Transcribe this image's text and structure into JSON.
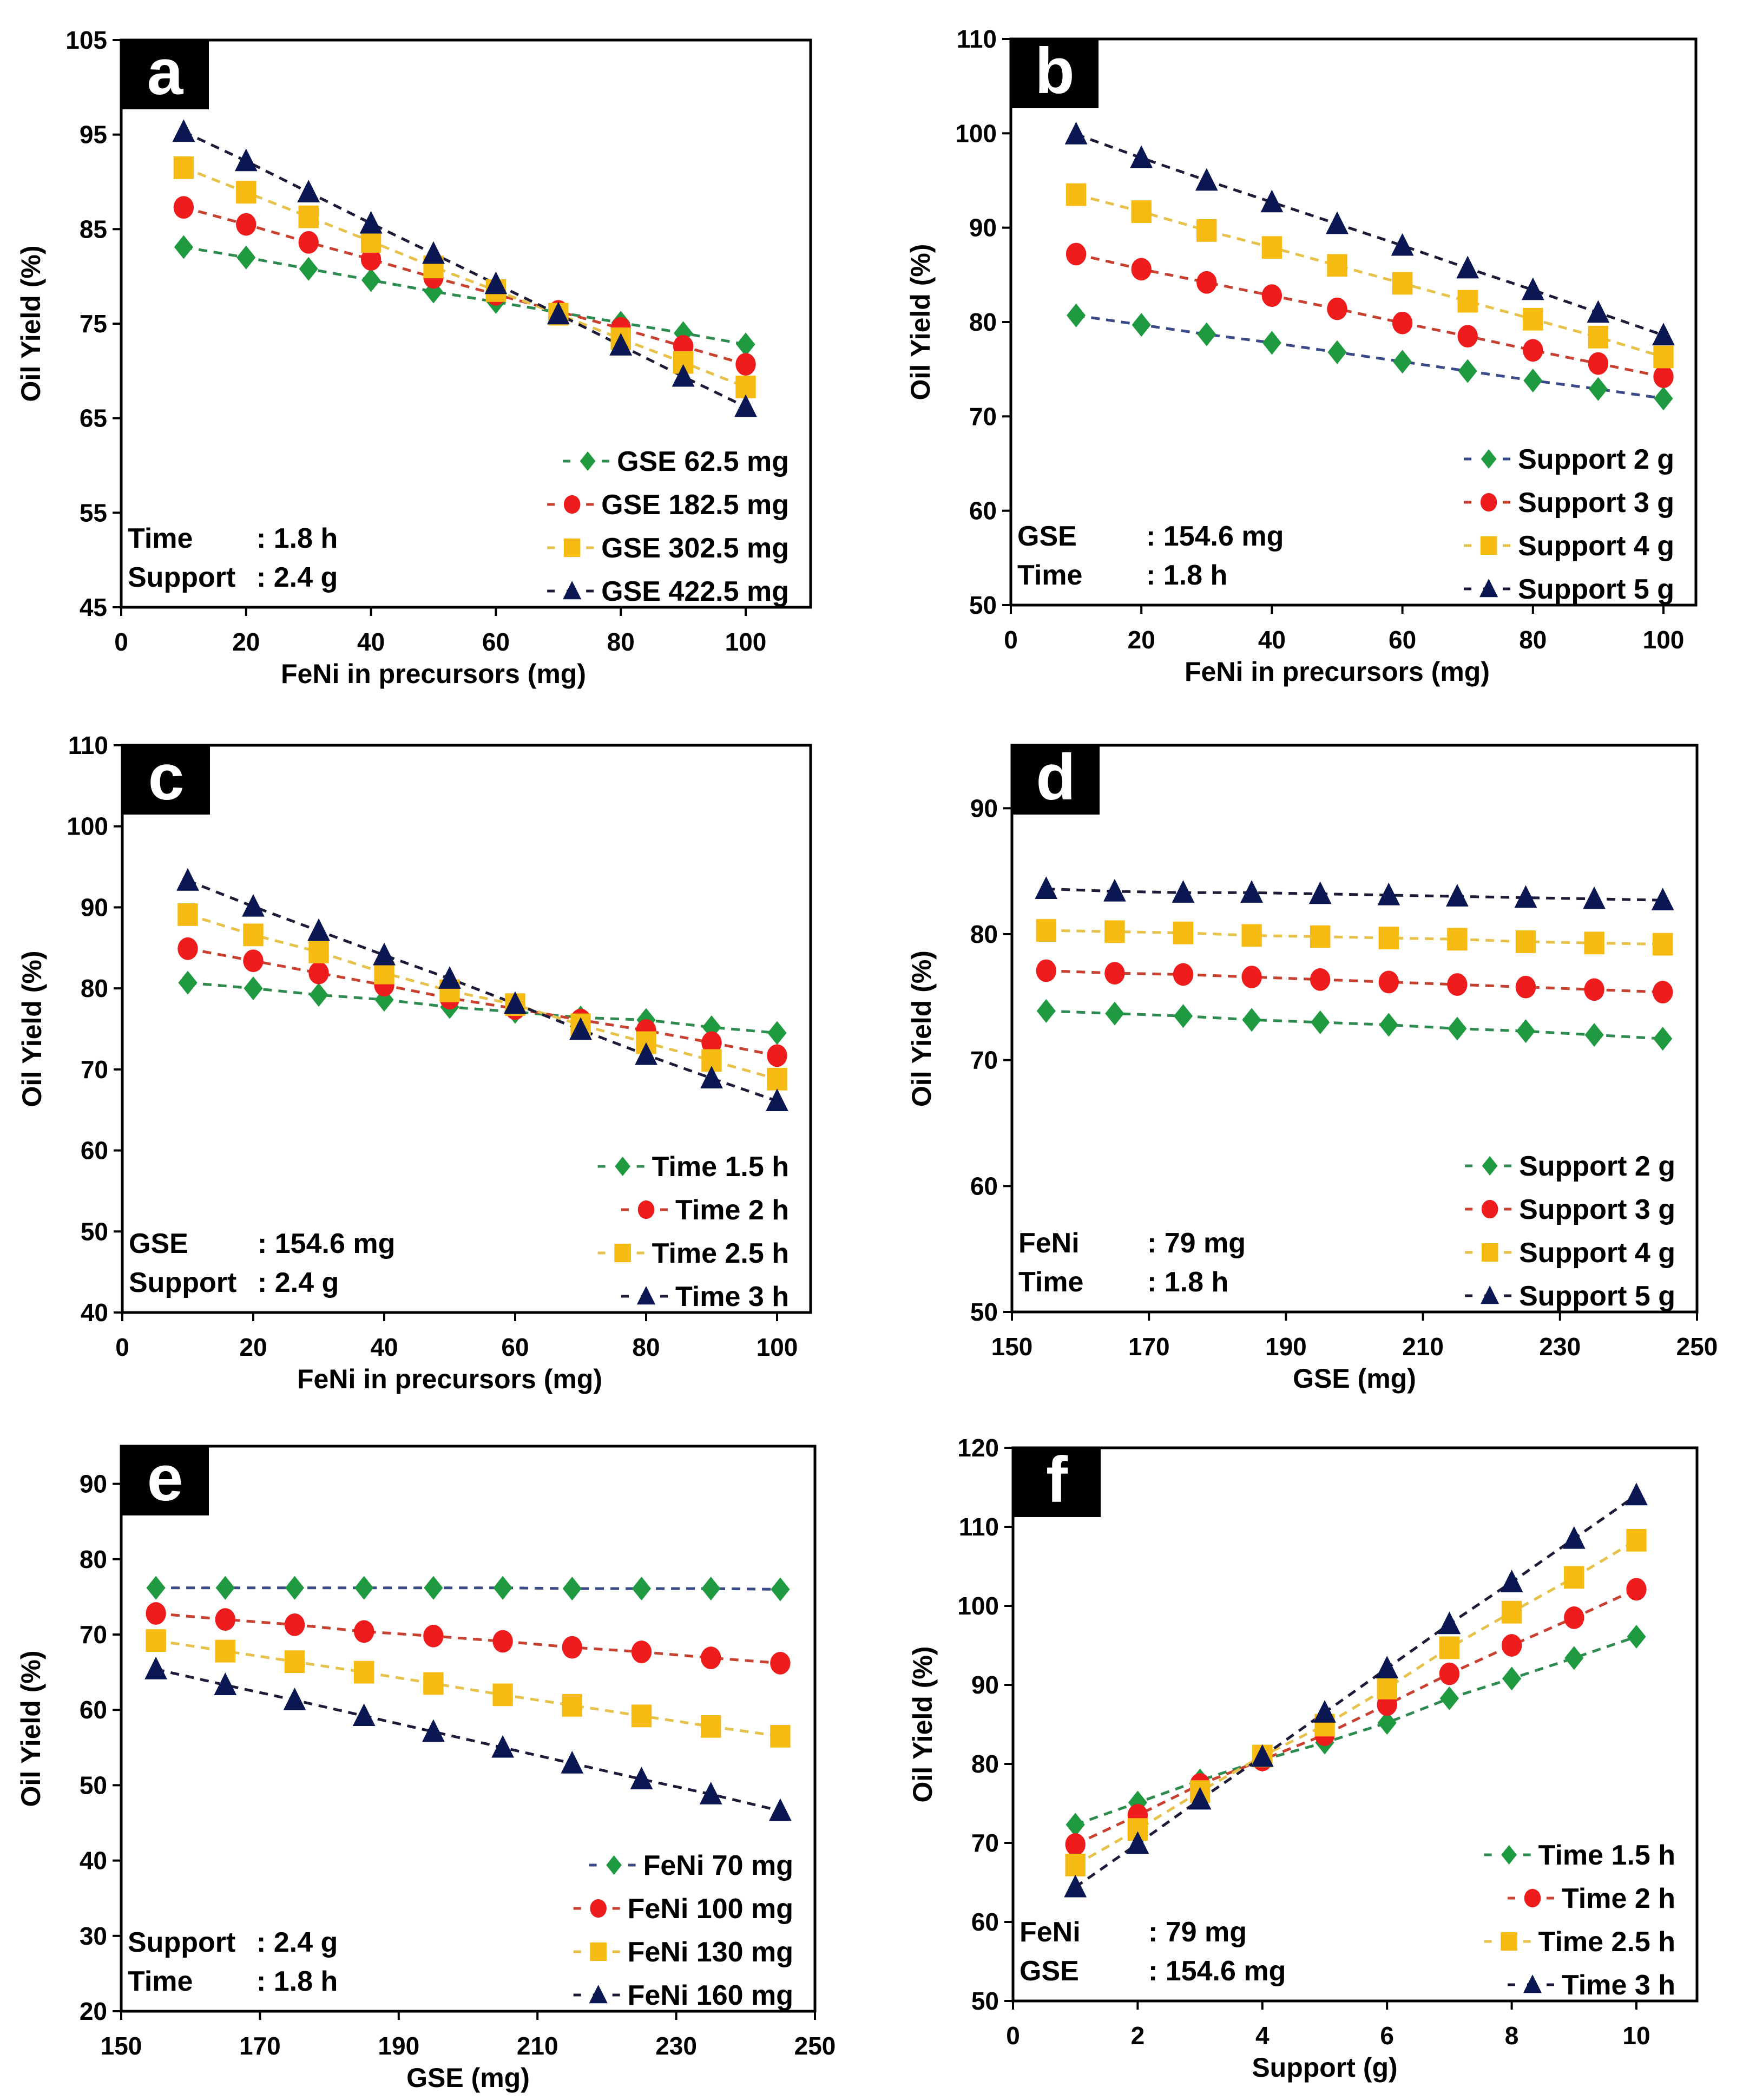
{
  "chart_data": [
    {
      "panel": "a",
      "type": "line",
      "title": "",
      "xlabel": "FeNi in precursors (mg)",
      "ylabel": "Oil Yield (%)",
      "xlim": [
        0,
        105
      ],
      "ylim": [
        45,
        105
      ],
      "xticks": [
        0,
        20,
        40,
        60,
        80,
        100
      ],
      "yticks": [
        45,
        55,
        65,
        75,
        85,
        95,
        105
      ],
      "x": [
        10,
        20,
        30,
        40,
        50,
        60,
        70,
        80,
        90,
        100
      ],
      "legend_position": "bottom-right",
      "annotations": [
        {
          "key": "Time",
          "value": ": 1.8 h"
        },
        {
          "key": "Support",
          "value": ": 2.4 g"
        }
      ],
      "series": [
        {
          "name": "GSE 62.5   mg",
          "marker": "diamond",
          "color": "#1f9a40",
          "line_color": "#2e8b4f",
          "values": [
            83.1,
            82.0,
            80.8,
            79.6,
            78.4,
            77.3,
            76.2,
            75.1,
            74.0,
            72.8
          ]
        },
        {
          "name": "GSE 182.5 mg",
          "marker": "circle",
          "color": "#ee1c1c",
          "line_color": "#c84030",
          "values": [
            87.3,
            85.5,
            83.6,
            81.8,
            79.9,
            78.1,
            76.3,
            74.5,
            72.6,
            70.7
          ]
        },
        {
          "name": "GSE 302.5 mg",
          "marker": "square",
          "color": "#f6bb12",
          "line_color": "#e6c24a",
          "values": [
            91.5,
            88.9,
            86.3,
            83.7,
            81.0,
            78.5,
            76.0,
            73.4,
            70.9,
            68.3
          ]
        },
        {
          "name": "GSE 422.5 mg",
          "marker": "triangle",
          "color": "#0b1752",
          "line_color": "#1c1c38",
          "values": [
            95.3,
            92.2,
            88.9,
            85.6,
            82.4,
            79.2,
            76.0,
            72.7,
            69.4,
            66.2
          ]
        }
      ]
    },
    {
      "panel": "b",
      "type": "line",
      "title": "",
      "xlabel": "FeNi in precursors (mg)",
      "ylabel": "Oil Yield (%)",
      "xlim": [
        0,
        105
      ],
      "ylim": [
        50,
        110
      ],
      "xticks": [
        0,
        20,
        40,
        60,
        80,
        100
      ],
      "yticks": [
        50,
        60,
        70,
        80,
        90,
        100,
        110
      ],
      "x": [
        10,
        20,
        30,
        40,
        50,
        60,
        70,
        80,
        90,
        100
      ],
      "legend_position": "bottom-right",
      "annotations": [
        {
          "key": "GSE",
          "value": ": 154.6 mg"
        },
        {
          "key": "Time",
          "value": ": 1.8 h"
        }
      ],
      "series": [
        {
          "name": "Support 2 g",
          "marker": "diamond",
          "color": "#1f9a40",
          "line_color": "#3a4a88",
          "values": [
            80.7,
            79.7,
            78.7,
            77.8,
            76.8,
            75.8,
            74.8,
            73.8,
            72.9,
            71.9
          ]
        },
        {
          "name": "Support 3 g",
          "marker": "circle",
          "color": "#ee1c1c",
          "line_color": "#c84030",
          "values": [
            87.2,
            85.6,
            84.2,
            82.8,
            81.4,
            79.9,
            78.5,
            77.0,
            75.6,
            74.2
          ]
        },
        {
          "name": "Support 4 g",
          "marker": "square",
          "color": "#f6bb12",
          "line_color": "#e6c24a",
          "values": [
            93.5,
            91.7,
            89.7,
            87.9,
            86.0,
            84.1,
            82.2,
            80.3,
            78.4,
            76.3
          ]
        },
        {
          "name": "Support 5 g",
          "marker": "triangle",
          "color": "#0b1752",
          "line_color": "#1c1c38",
          "values": [
            99.9,
            97.4,
            95.0,
            92.7,
            90.4,
            88.1,
            85.7,
            83.4,
            81.0,
            78.6
          ]
        }
      ]
    },
    {
      "panel": "c",
      "type": "line",
      "title": "",
      "xlabel": "FeNi in precursors (mg)",
      "ylabel": "Oil Yield (%)",
      "xlim": [
        0,
        106
      ],
      "ylim": [
        40,
        110
      ],
      "xticks": [
        0,
        20,
        40,
        60,
        80,
        100
      ],
      "yticks": [
        40,
        50,
        60,
        70,
        80,
        90,
        100,
        110
      ],
      "x": [
        10,
        20,
        30,
        40,
        50,
        60,
        70,
        80,
        90,
        100
      ],
      "legend_position": "bottom-right",
      "annotations": [
        {
          "key": "GSE",
          "value": ": 154.6 mg"
        },
        {
          "key": "Support",
          "value": ": 2.4 g"
        }
      ],
      "series": [
        {
          "name": "Time 1.5 h",
          "marker": "diamond",
          "color": "#1f9a40",
          "line_color": "#2e8b4f",
          "values": [
            80.7,
            80.0,
            79.2,
            78.6,
            77.7,
            77.1,
            76.4,
            76.1,
            75.2,
            74.5
          ]
        },
        {
          "name": "Time  2   h",
          "marker": "circle",
          "color": "#ee1c1c",
          "line_color": "#c84030",
          "values": [
            84.9,
            83.4,
            81.9,
            80.4,
            78.8,
            77.5,
            76.1,
            74.8,
            73.3,
            71.7
          ]
        },
        {
          "name": "Time 2.5 h",
          "marker": "square",
          "color": "#f6bb12",
          "line_color": "#e6c24a",
          "values": [
            89.1,
            86.6,
            84.5,
            81.9,
            79.7,
            78.0,
            75.5,
            73.3,
            71.1,
            68.8
          ]
        },
        {
          "name": "Time  3   h",
          "marker": "triangle",
          "color": "#0b1752",
          "line_color": "#1c1c38",
          "values": [
            93.3,
            90.1,
            87.1,
            84.1,
            81.2,
            78.1,
            74.9,
            71.8,
            68.9,
            66.1
          ]
        }
      ]
    },
    {
      "panel": "d",
      "type": "line",
      "title": "",
      "xlabel": "GSE (mg)",
      "ylabel": "Oil Yield (%)",
      "xlim": [
        150,
        250
      ],
      "ylim": [
        50,
        95
      ],
      "xticks": [
        150,
        170,
        190,
        210,
        230,
        250
      ],
      "yticks": [
        50,
        60,
        70,
        80,
        90
      ],
      "x": [
        155,
        165,
        175,
        185,
        195,
        205,
        215,
        225,
        235,
        245
      ],
      "legend_position": "bottom-right",
      "annotations": [
        {
          "key": "FeNi",
          "value": ": 79 mg"
        },
        {
          "key": "Time",
          "value": ":  1.8 h"
        }
      ],
      "series": [
        {
          "name": "Support 2 g",
          "marker": "diamond",
          "color": "#1f9a40",
          "line_color": "#2e8b4f",
          "values": [
            73.9,
            73.7,
            73.5,
            73.2,
            73.0,
            72.8,
            72.5,
            72.3,
            72.0,
            71.7
          ]
        },
        {
          "name": "Support 3 g",
          "marker": "circle",
          "color": "#ee1c1c",
          "line_color": "#c84030",
          "values": [
            77.1,
            76.9,
            76.8,
            76.6,
            76.4,
            76.2,
            76.0,
            75.8,
            75.6,
            75.4
          ]
        },
        {
          "name": "Support 4 g",
          "marker": "square",
          "color": "#f6bb12",
          "line_color": "#e6c24a",
          "values": [
            80.3,
            80.2,
            80.1,
            79.9,
            79.8,
            79.7,
            79.6,
            79.4,
            79.3,
            79.2
          ]
        },
        {
          "name": "Support 5 g",
          "marker": "triangle",
          "color": "#0b1752",
          "line_color": "#1c1c38",
          "values": [
            83.6,
            83.4,
            83.3,
            83.3,
            83.2,
            83.1,
            83.0,
            82.9,
            82.8,
            82.7
          ]
        }
      ]
    },
    {
      "panel": "e",
      "type": "line",
      "title": "",
      "xlabel": "GSE (mg)",
      "ylabel": "Oil Yield (%)",
      "xlim": [
        150,
        250
      ],
      "ylim": [
        20,
        95
      ],
      "xticks": [
        150,
        170,
        190,
        210,
        230,
        250
      ],
      "yticks": [
        20,
        30,
        40,
        50,
        60,
        70,
        80,
        90
      ],
      "x": [
        155,
        165,
        175,
        185,
        195,
        205,
        215,
        225,
        235,
        245
      ],
      "legend_position": "bottom-right",
      "annotations": [
        {
          "key": "Support",
          "value": ": 2.4 g"
        },
        {
          "key": "Time",
          "value": ":  1.8 h"
        }
      ],
      "series": [
        {
          "name": "FeNi  70  mg",
          "marker": "diamond",
          "color": "#1f9a40",
          "line_color": "#3a4a88",
          "values": [
            76.2,
            76.2,
            76.2,
            76.2,
            76.2,
            76.2,
            76.1,
            76.1,
            76.1,
            76.0
          ]
        },
        {
          "name": "FeNi 100 mg",
          "marker": "circle",
          "color": "#ee1c1c",
          "line_color": "#c84030",
          "values": [
            72.8,
            72.0,
            71.3,
            70.4,
            69.8,
            69.1,
            68.3,
            67.7,
            66.9,
            66.2
          ]
        },
        {
          "name": "FeNi 130 mg",
          "marker": "square",
          "color": "#f6bb12",
          "line_color": "#e6c24a",
          "values": [
            69.2,
            67.8,
            66.4,
            65.0,
            63.5,
            62.0,
            60.6,
            59.2,
            57.8,
            56.5
          ]
        },
        {
          "name": "FeNi 160 mg",
          "marker": "triangle",
          "color": "#0b1752",
          "line_color": "#1c1c38",
          "values": [
            65.4,
            63.3,
            61.3,
            59.2,
            57.1,
            55.0,
            52.9,
            50.8,
            48.8,
            46.6
          ]
        }
      ]
    },
    {
      "panel": "f",
      "type": "line",
      "title": "",
      "xlabel": "Support (g)",
      "ylabel": "Oil Yield (%)",
      "xlim": [
        0,
        11
      ],
      "ylim": [
        50,
        120
      ],
      "xticks": [
        0,
        2,
        4,
        6,
        8,
        10
      ],
      "yticks": [
        50,
        60,
        70,
        80,
        90,
        100,
        110,
        120
      ],
      "x": [
        1,
        2,
        3,
        4,
        5,
        6,
        7,
        8,
        9,
        10
      ],
      "legend_position": "bottom-right",
      "annotations": [
        {
          "key": "FeNi",
          "value": ": 79 mg"
        },
        {
          "key": "GSE",
          "value": ":  154.6 mg"
        }
      ],
      "series": [
        {
          "name": "Time 1.5 h",
          "marker": "diamond",
          "color": "#1f9a40",
          "line_color": "#2e8b4f",
          "values": [
            72.3,
            75.1,
            77.9,
            80.5,
            82.7,
            85.2,
            88.3,
            90.8,
            93.4,
            96.1
          ]
        },
        {
          "name": "Time   2  h",
          "marker": "circle",
          "color": "#ee1c1c",
          "line_color": "#c84030",
          "values": [
            69.8,
            73.5,
            77.4,
            80.5,
            83.7,
            87.5,
            91.4,
            95.0,
            98.5,
            102.1
          ]
        },
        {
          "name": "Time 2.5 h",
          "marker": "square",
          "color": "#f6bb12",
          "line_color": "#e6c24a",
          "values": [
            67.2,
            71.7,
            76.5,
            81.0,
            84.9,
            89.6,
            94.7,
            99.2,
            103.6,
            108.3
          ]
        },
        {
          "name": "Time   3  h",
          "marker": "triangle",
          "color": "#0b1752",
          "line_color": "#1c1c38",
          "values": [
            64.4,
            69.9,
            75.5,
            80.9,
            86.5,
            92.1,
            97.7,
            103.0,
            108.5,
            114.0
          ]
        }
      ]
    }
  ]
}
